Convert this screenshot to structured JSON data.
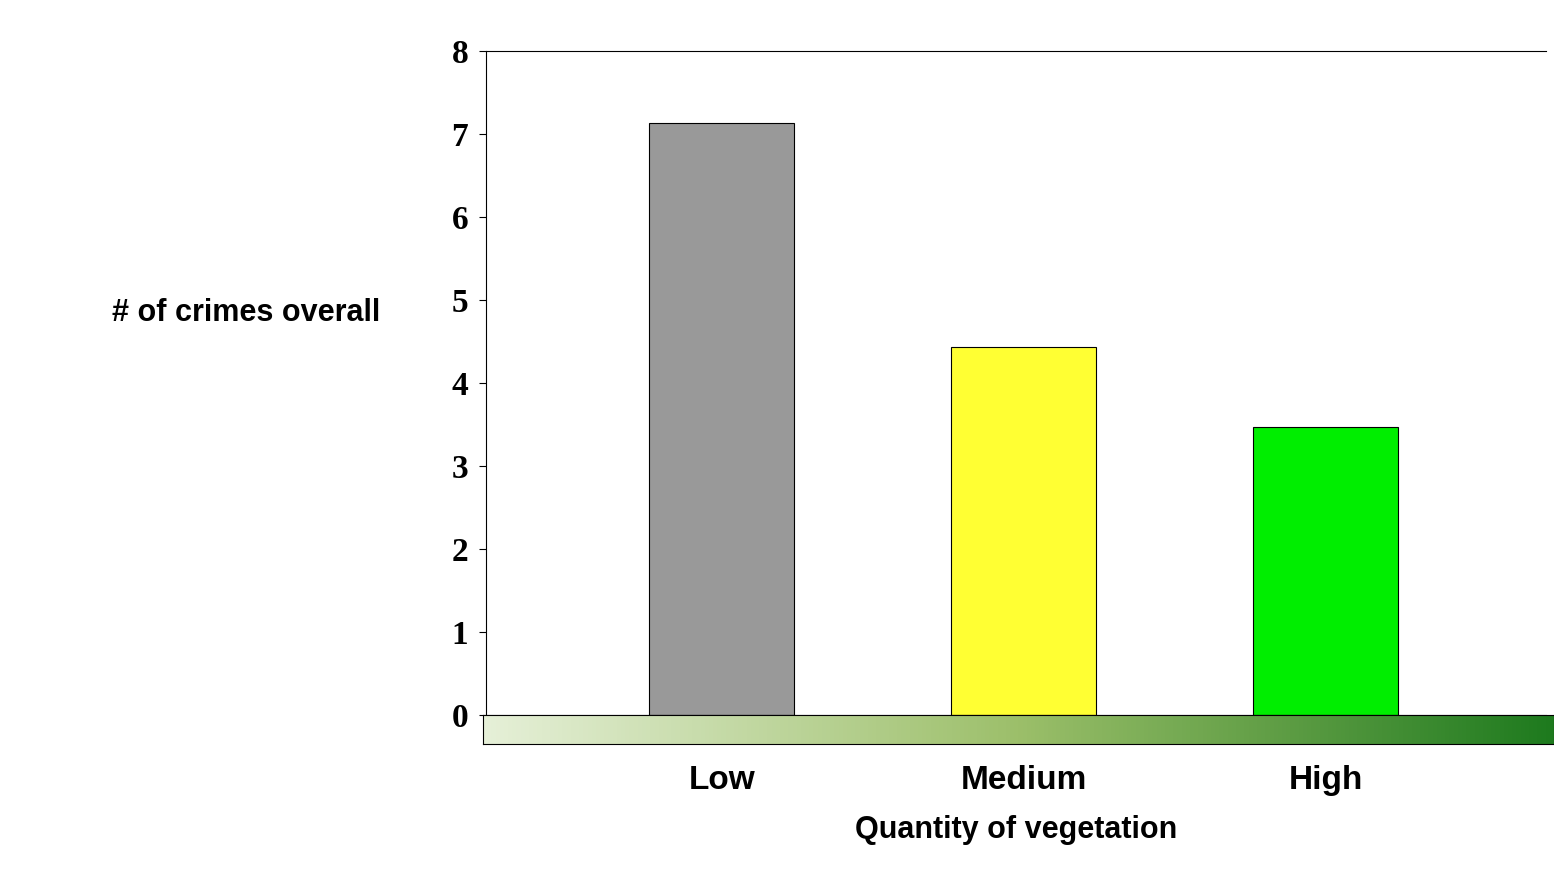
{
  "chart_data": {
    "type": "bar",
    "categories": [
      "Low",
      "Medium",
      "High"
    ],
    "values": [
      7.13,
      4.43,
      3.47
    ],
    "colors": [
      "#999999",
      "#ffff33",
      "#00ee00"
    ],
    "x_label": "Quantity of vegetation",
    "y_label": "# of crimes overall",
    "ylim": [
      0,
      8
    ],
    "yticks": [
      0,
      1,
      2,
      3,
      4,
      5,
      6,
      7,
      8
    ],
    "grid": false
  }
}
